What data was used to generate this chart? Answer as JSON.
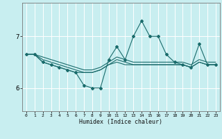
{
  "background_color": "#c8eef0",
  "grid_color": "#ffffff",
  "line_color": "#1a6b6b",
  "x_label": "Humidex (Indice chaleur)",
  "x_ticks": [
    0,
    1,
    2,
    3,
    4,
    5,
    6,
    7,
    8,
    9,
    10,
    11,
    12,
    13,
    14,
    15,
    16,
    17,
    18,
    19,
    20,
    21,
    22,
    23
  ],
  "ylim": [
    5.55,
    7.65
  ],
  "yticks": [
    6,
    7
  ],
  "xlim": [
    -0.5,
    23.5
  ],
  "line1_x": [
    0,
    1,
    2,
    3,
    4,
    5,
    6,
    7,
    8,
    9,
    10,
    11,
    12,
    13,
    14,
    15,
    16,
    17,
    18,
    19,
    20,
    21,
    22,
    23
  ],
  "line1_y": [
    6.65,
    6.65,
    6.55,
    6.5,
    6.45,
    6.4,
    6.35,
    6.3,
    6.3,
    6.35,
    6.45,
    6.55,
    6.5,
    6.45,
    6.45,
    6.45,
    6.45,
    6.45,
    6.45,
    6.45,
    6.4,
    6.5,
    6.45,
    6.45
  ],
  "line2_x": [
    0,
    1,
    2,
    3,
    4,
    5,
    6,
    7,
    8,
    9,
    10,
    11,
    12,
    13,
    14,
    15,
    16,
    17,
    18,
    19,
    20,
    21,
    22,
    23
  ],
  "line2_y": [
    6.65,
    6.65,
    6.5,
    6.45,
    6.4,
    6.35,
    6.3,
    6.3,
    6.3,
    6.35,
    6.45,
    6.5,
    6.45,
    6.45,
    6.45,
    6.45,
    6.45,
    6.45,
    6.45,
    6.45,
    6.4,
    6.5,
    6.45,
    6.45
  ],
  "line3_x": [
    0,
    1,
    2,
    3,
    4,
    5,
    6,
    7,
    8,
    9,
    10,
    11,
    12,
    13,
    14,
    15,
    16,
    17,
    18,
    19,
    20,
    21,
    22,
    23
  ],
  "line3_y": [
    6.65,
    6.65,
    6.6,
    6.55,
    6.5,
    6.45,
    6.4,
    6.35,
    6.35,
    6.4,
    6.5,
    6.6,
    6.55,
    6.5,
    6.5,
    6.5,
    6.5,
    6.5,
    6.5,
    6.5,
    6.45,
    6.55,
    6.5,
    6.5
  ],
  "line4_x": [
    0,
    1,
    2,
    3,
    4,
    5,
    6,
    7,
    8,
    9,
    10,
    11,
    12,
    13,
    14,
    15,
    16,
    17,
    18,
    19,
    20,
    21,
    22,
    23
  ],
  "line4_y": [
    6.65,
    6.65,
    6.5,
    6.45,
    6.4,
    6.35,
    6.3,
    6.05,
    6.0,
    6.0,
    6.55,
    6.8,
    6.55,
    7.0,
    7.3,
    7.0,
    7.0,
    6.65,
    6.5,
    6.45,
    6.4,
    6.85,
    6.45,
    6.45
  ]
}
